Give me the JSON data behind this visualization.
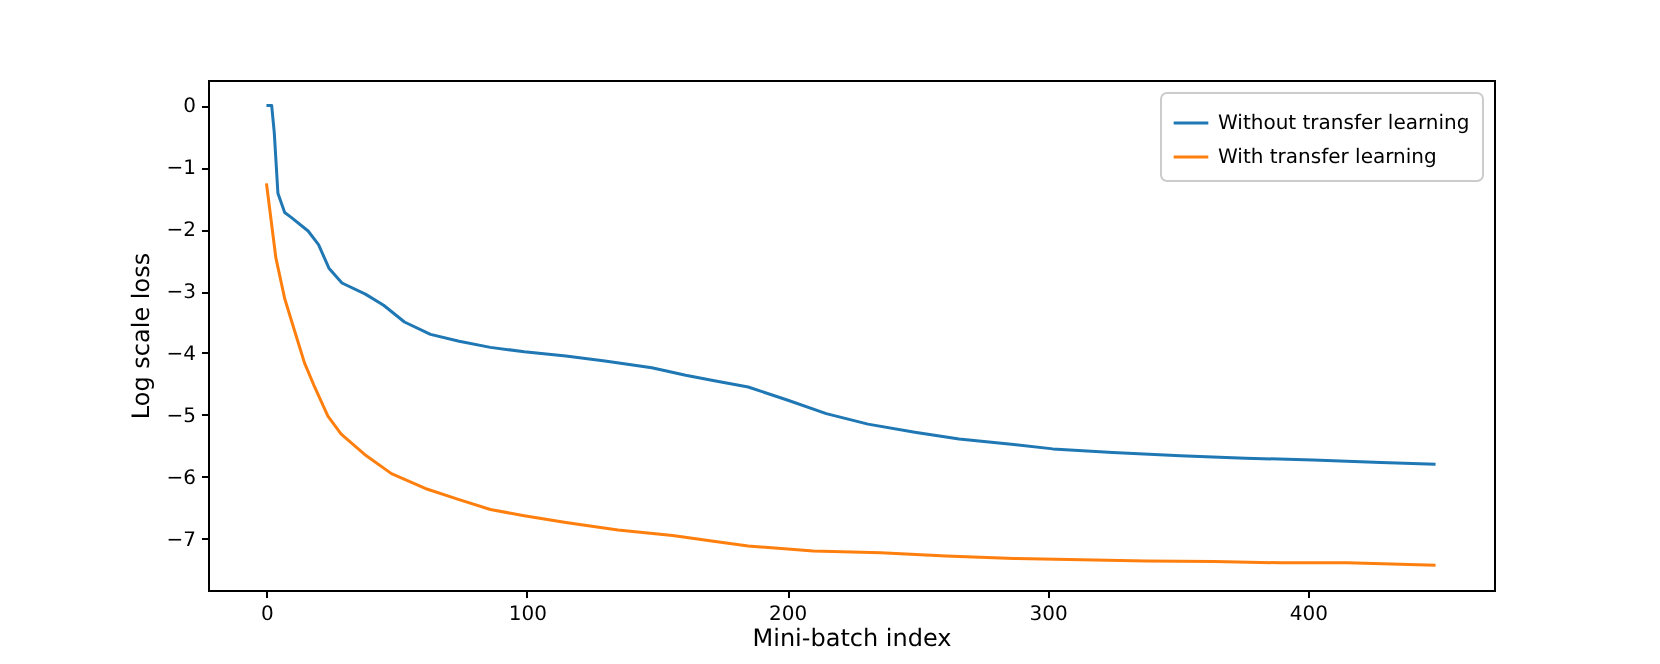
{
  "chart_data": {
    "type": "line",
    "xlabel": "Mini-batch index",
    "ylabel": "Log scale loss",
    "xlim": [
      -22.45,
      471.45
    ],
    "xticks": [
      0,
      100,
      200,
      300,
      400
    ],
    "ylim": [
      -7.83,
      0.41
    ],
    "yticks": [
      0,
      -1,
      -2,
      -3,
      -4,
      -5,
      -6,
      -7
    ],
    "grid": false,
    "legend": "top right",
    "marker": "none",
    "line_style": "solid",
    "series": [
      {
        "name": "Without transfer learning",
        "color": "#1f77b4",
        "x": [
          0,
          2,
          3,
          4.4,
          7,
          9.5,
          16,
          20,
          24,
          29,
          38,
          45,
          53,
          63,
          74,
          86,
          99,
          115,
          130,
          148,
          161,
          171,
          185,
          200,
          215,
          231,
          249,
          266,
          287,
          302,
          325,
          351,
          376,
          402,
          428,
          449
        ],
        "values": [
          0,
          0,
          -0.44,
          -1.42,
          -1.73,
          -1.81,
          -2.03,
          -2.25,
          -2.63,
          -2.87,
          -3.05,
          -3.23,
          -3.5,
          -3.7,
          -3.81,
          -3.91,
          -3.98,
          -4.05,
          -4.13,
          -4.24,
          -4.36,
          -4.44,
          -4.55,
          -4.76,
          -4.98,
          -5.15,
          -5.28,
          -5.39,
          -5.48,
          -5.55,
          -5.61,
          -5.66,
          -5.7,
          -5.73,
          -5.77,
          -5.8
        ]
      },
      {
        "name": "With transfer learning",
        "color": "#ff7f0e",
        "x": [
          0,
          1.8,
          3.6,
          7,
          11,
          14.6,
          18.5,
          23.6,
          28.7,
          37.7,
          48,
          61,
          74,
          86,
          99,
          115,
          135,
          156,
          171,
          185,
          210,
          236,
          261,
          287,
          313,
          338,
          364,
          389,
          415,
          449
        ],
        "values": [
          -1.26,
          -1.86,
          -2.46,
          -3.12,
          -3.67,
          -4.16,
          -4.55,
          -5.02,
          -5.31,
          -5.64,
          -5.95,
          -6.19,
          -6.37,
          -6.53,
          -6.63,
          -6.74,
          -6.86,
          -6.95,
          -7.04,
          -7.12,
          -7.2,
          -7.23,
          -7.28,
          -7.32,
          -7.34,
          -7.36,
          -7.37,
          -7.39,
          -7.39,
          -7.43
        ]
      }
    ]
  }
}
